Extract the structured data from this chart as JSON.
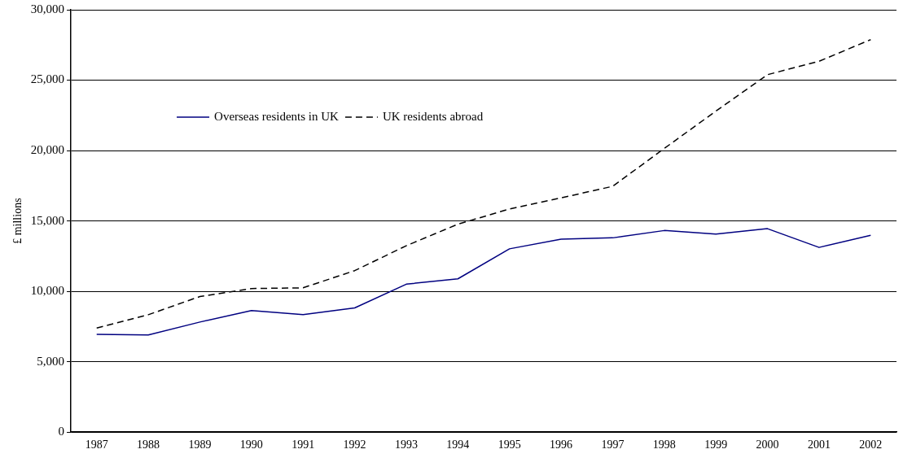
{
  "chart_data": {
    "type": "line",
    "ylabel": "£ millions",
    "categories": [
      "1987",
      "1988",
      "1989",
      "1990",
      "1991",
      "1992",
      "1993",
      "1994",
      "1995",
      "1996",
      "1997",
      "1998",
      "1999",
      "2000",
      "2001",
      "2002"
    ],
    "series": [
      {
        "name": "Overseas residents in UK",
        "color": "#000080",
        "line_style": "solid",
        "values": [
          6940,
          6900,
          7820,
          8630,
          8340,
          8820,
          10510,
          10890,
          13020,
          13700,
          13800,
          14320,
          14070,
          14450,
          13120,
          13980
        ]
      },
      {
        "name": "UK residents abroad",
        "color": "#000000",
        "line_style": "dashed",
        "values": [
          7390,
          8340,
          9630,
          10200,
          10250,
          11470,
          13240,
          14770,
          15850,
          16640,
          17460,
          20150,
          22800,
          25390,
          26340,
          27880
        ]
      }
    ],
    "ylim": [
      0,
      30000
    ],
    "yticks": [
      {
        "value": 0,
        "label": "0"
      },
      {
        "value": 5000,
        "label": "5,000"
      },
      {
        "value": 10000,
        "label": "10,000"
      },
      {
        "value": 15000,
        "label": "15,000"
      },
      {
        "value": 20000,
        "label": "20,000"
      },
      {
        "value": 25000,
        "label": "25,000"
      },
      {
        "value": 30000,
        "label": "30,000"
      }
    ],
    "grid": "y",
    "legend": "top left",
    "marker": "none"
  }
}
